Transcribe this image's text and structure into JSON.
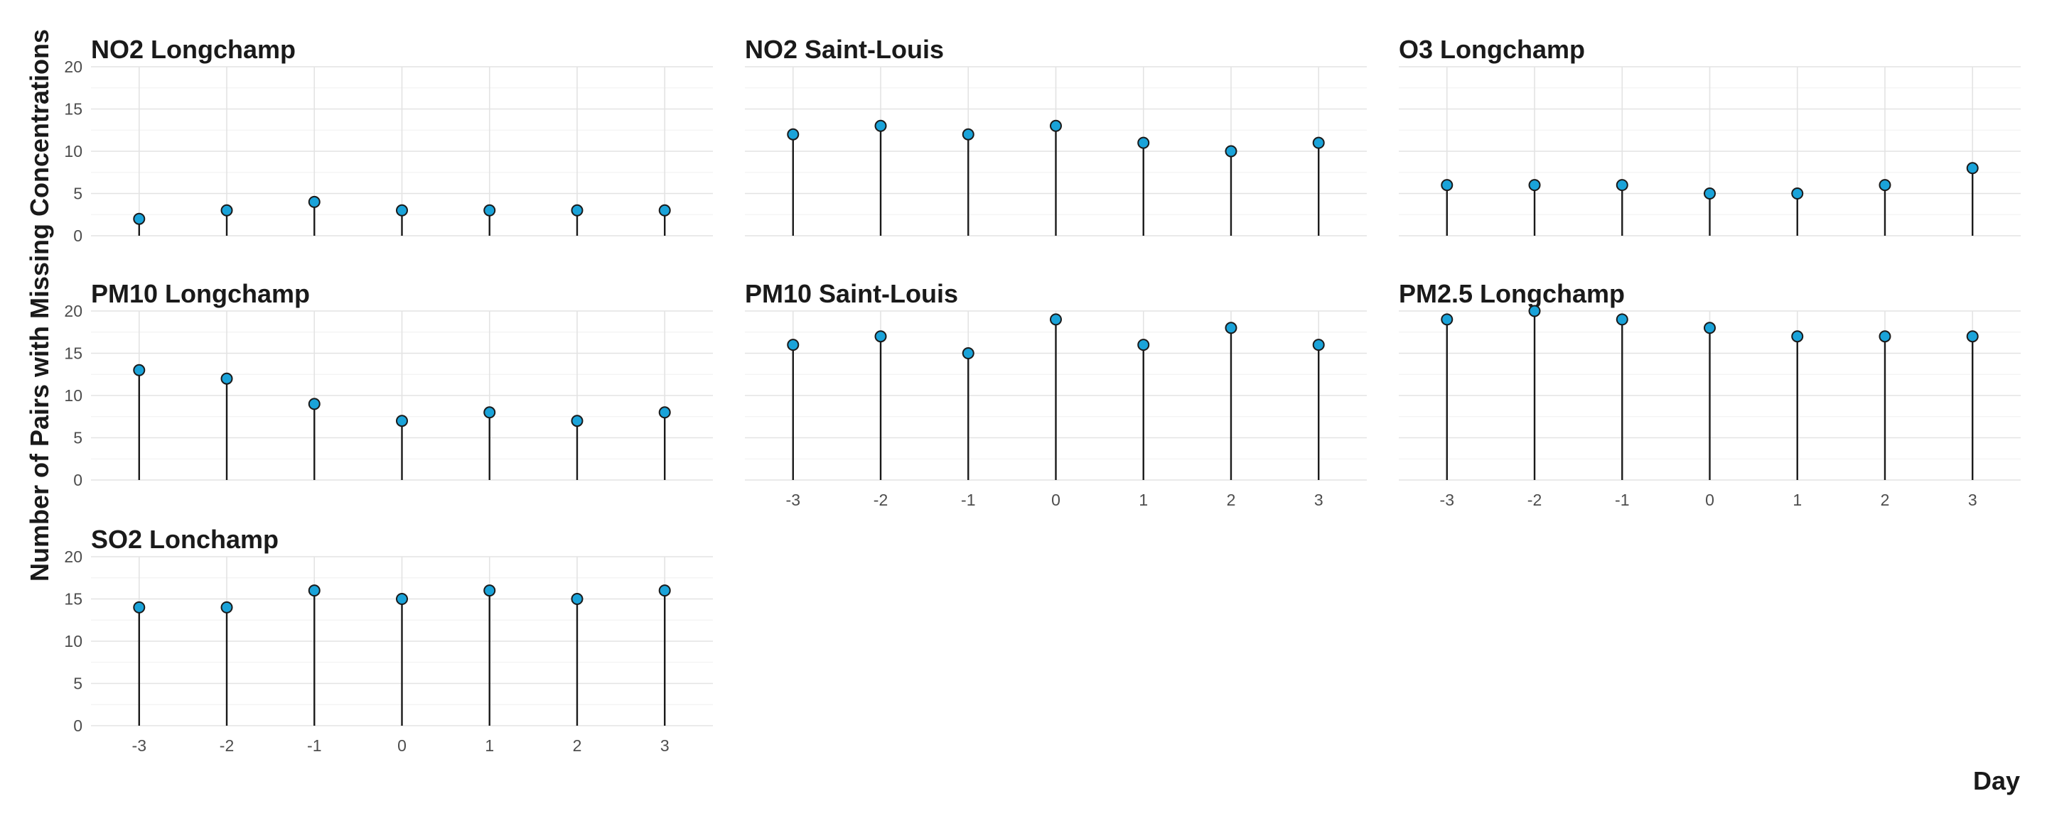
{
  "chart_data": {
    "type": "lollipop",
    "facets": "wrap-3-columns",
    "x_ticks": [
      -3,
      -2,
      -1,
      0,
      1,
      2,
      3
    ],
    "y_ticks": [
      0,
      5,
      10,
      15,
      20
    ],
    "xlim": [
      -3.55,
      3.55
    ],
    "ylim": [
      0,
      20
    ],
    "grid": true,
    "xlabel": "Day",
    "ylabel": "Number of Pairs with Missing Concentrations",
    "point_color": "#1aa3d9",
    "panels": [
      {
        "title": "NO2 Longchamp",
        "x": [
          -3,
          -2,
          -1,
          0,
          1,
          2,
          3
        ],
        "values": [
          2,
          3,
          4,
          3,
          3,
          3,
          3
        ]
      },
      {
        "title": "NO2 Saint-Louis",
        "x": [
          -3,
          -2,
          -1,
          0,
          1,
          2,
          3
        ],
        "values": [
          12,
          13,
          12,
          13,
          11,
          10,
          11
        ]
      },
      {
        "title": "O3 Longchamp",
        "x": [
          -3,
          -2,
          -1,
          0,
          1,
          2,
          3
        ],
        "values": [
          6,
          6,
          6,
          5,
          5,
          6,
          8
        ]
      },
      {
        "title": "PM10 Longchamp",
        "x": [
          -3,
          -2,
          -1,
          0,
          1,
          2,
          3
        ],
        "values": [
          13,
          12,
          9,
          7,
          8,
          7,
          8
        ]
      },
      {
        "title": "PM10 Saint-Louis",
        "x": [
          -3,
          -2,
          -1,
          0,
          1,
          2,
          3
        ],
        "values": [
          16,
          17,
          15,
          19,
          16,
          18,
          16
        ]
      },
      {
        "title": "PM2.5 Longchamp",
        "x": [
          -3,
          -2,
          -1,
          0,
          1,
          2,
          3
        ],
        "values": [
          19,
          20,
          19,
          18,
          17,
          17,
          17
        ]
      },
      {
        "title": "SO2 Lonchamp",
        "x": [
          -3,
          -2,
          -1,
          0,
          1,
          2,
          3
        ],
        "values": [
          14,
          14,
          16,
          15,
          16,
          15,
          16
        ]
      }
    ]
  }
}
